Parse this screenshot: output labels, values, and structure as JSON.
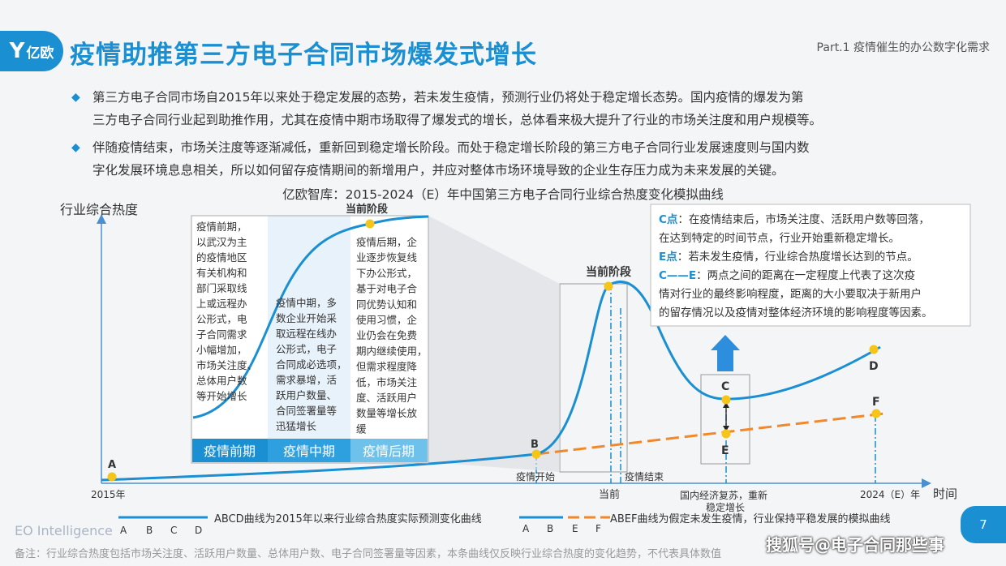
{
  "logo": {
    "text": "亿欧"
  },
  "title": "疫情助推第三方电子合同市场爆发式增长",
  "part_label": "Part.1 疫情催生的办公数字化需求",
  "bullets": [
    {
      "line1": "第三方电子合同市场自2015年以来处于稳定发展的态势，若未发生疫情，预测行业仍将处于稳定增长态势。国内疫情的爆发为第",
      "line2": "三方电子合同行业起到助推作用，尤其在疫情中期市场取得了爆发式的增长，总体看来极大提升了行业的市场关注度和用户规模等。"
    },
    {
      "line1": "伴随疫情结束，市场关注度等逐渐减低，重新回到稳定增长阶段。而处于稳定增长阶段的第三方电子合同行业发展速度则与国内数",
      "line2": "字化发展环境息息相关，所以如何留存疫情期间的新增用户，并应对整体市场环境导致的企业生存压力成为未来发展的关键。"
    }
  ],
  "chart_title": "亿欧智库：2015-2024（E）年中国第三方电子合同行业综合热度变化模拟曲线",
  "y_axis_label": "行业综合热度",
  "x_axis_label": "时间",
  "x_ticks": {
    "start": "2015年",
    "current": "当前",
    "end": "2024（E）年"
  },
  "x_events": {
    "epidemic_start": "疫情开始",
    "epidemic_end": "疫情结束",
    "recovery_line1": "国内经济复苏，重新",
    "recovery_line2": "稳定增长"
  },
  "points": {
    "A": "A",
    "B": "B",
    "C": "C",
    "D": "D",
    "E": "E",
    "F": "F"
  },
  "current_stage": "当前阶段",
  "inset": {
    "top_label": "当前阶段",
    "early_text": [
      "疫情前期，",
      "以武汉为主",
      "的疫情地区",
      "有关机构和",
      "部门采取线",
      "上或远程办",
      "公形式，电",
      "子合同需求",
      "小幅增加，",
      "市场关注度、",
      "总体用户数",
      "等开始增长"
    ],
    "mid_text": [
      "疫情中期，多",
      "数企业开始采",
      "取远程在线办",
      "公形式，电子",
      "合同成必选项，",
      "需求暴增，活",
      "跃用户数量、",
      "合同签署量等",
      "迅猛增长"
    ],
    "late_text": [
      "疫情后期，企",
      "业逐步恢复线",
      "下办公形式，",
      "基于对电子合",
      "同优势认知和",
      "使用习惯，企",
      "业仍会在免费",
      "期内继续使用，",
      "但需求程度降",
      "低，市场关注",
      "度、活跃用户",
      "数量等增长放",
      "缓"
    ],
    "phase_early": "疫情前期",
    "phase_mid": "疫情中期",
    "phase_late": "疫情后期"
  },
  "info_box": {
    "c_key": "C点",
    "c_line1": "：在疫情结束后，市场关注度、活跃用户数等回落，",
    "c_line2": "在达到特定的时间节点，行业开始重新稳定增长。",
    "e_key": "E点",
    "e_line1": "：若未发生疫情，行业综合热度增长达到的节点。",
    "ce_key": "C——E",
    "ce_line1": "：两点之间的距离在一定程度上代表了这次疫",
    "ce_line2": "情对行业的最终影响程度，距离的大小要取决于新用户",
    "ce_line3": "的留存情况以及疫情对整体经济环境的影响程度等因素。"
  },
  "legend": {
    "abcd_letters": [
      "A",
      "B",
      "C",
      "D"
    ],
    "abcd_text": "ABCD曲线为2015年以来行业综合热度实际预测变化曲线",
    "abef_letters": [
      "A",
      "B",
      "E",
      "F"
    ],
    "abef_text": "ABEF曲线为假定未发生疫情，行业保持平稳发展的模拟曲线"
  },
  "footer": "EO Intelligence",
  "note": "备注：行业综合热度包括市场关注度、活跃用户数量、总体用户数、电子合同签署量等因素，本条曲线仅反映行业综合热度的变化趋势，不代表具体数值",
  "page_number": "7",
  "watermark": "搜狐号@电子合同那些事",
  "colors": {
    "accent": "#1a8fd1",
    "dashed": "#f0892b",
    "point": "#f5c518"
  }
}
